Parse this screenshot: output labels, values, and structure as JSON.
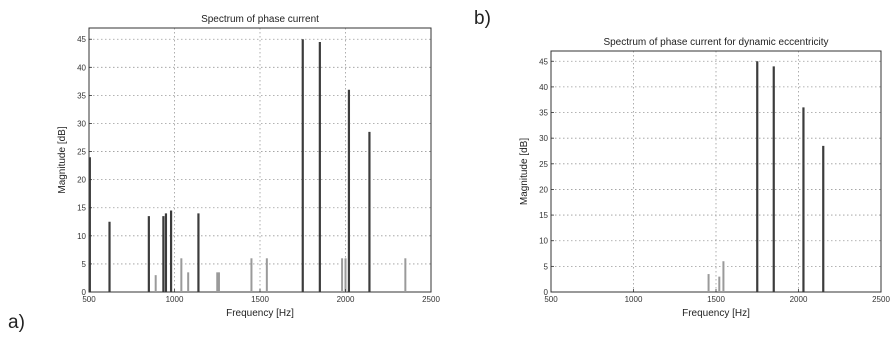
{
  "panel_labels": {
    "a": "a)",
    "b": "b)"
  },
  "colors": {
    "stem": "#3c3c3c",
    "stem_light": "#9a9a9a",
    "grid": "#9a9a9a",
    "frame": "#333333"
  },
  "chart_data": [
    {
      "type": "bar",
      "panel": "a)",
      "title": "Spectrum of phase current",
      "xlabel": "Frequency [Hz]",
      "ylabel": "Magnitude [dB]",
      "xlim": [
        500,
        2500
      ],
      "ylim": [
        0,
        47
      ],
      "xticks": [
        500,
        1000,
        1500,
        2000,
        2500
      ],
      "yticks": [
        0,
        5,
        10,
        15,
        20,
        25,
        30,
        35,
        40,
        45
      ],
      "ytick_labels": [
        "0",
        "5",
        "10",
        "15",
        "20",
        "25",
        "30",
        "35",
        "40",
        "45"
      ],
      "grid": true,
      "x": [
        505,
        620,
        850,
        890,
        935,
        950,
        980,
        1040,
        1080,
        1140,
        1250,
        1260,
        1450,
        1540,
        1750,
        1850,
        1980,
        2000,
        2020,
        2140,
        2350
      ],
      "values": [
        24,
        12.5,
        13.5,
        3,
        13.5,
        14,
        14.5,
        6,
        3.5,
        14,
        3.5,
        3.5,
        6,
        6,
        45,
        44.5,
        6,
        6,
        36,
        28.5,
        6
      ]
    },
    {
      "type": "bar",
      "panel": "b)",
      "title": "Spectrum of phase current for dynamic eccentricity",
      "xlabel": "Frequency [Hz]",
      "ylabel": "Magnitude [dB]",
      "xlim": [
        500,
        2500
      ],
      "ylim": [
        0,
        47
      ],
      "xticks": [
        500,
        1000,
        1500,
        2000,
        2500
      ],
      "yticks": [
        0,
        5,
        10,
        15,
        20,
        25,
        30,
        35,
        40,
        45
      ],
      "ytick_labels": [
        "0",
        "5",
        "10",
        "15",
        "20",
        "25",
        "30",
        "35",
        "40",
        "45"
      ],
      "grid": true,
      "x": [
        1455,
        1520,
        1545,
        1750,
        1850,
        2030,
        2150
      ],
      "values": [
        3.5,
        3,
        6,
        45,
        44,
        36,
        28.5
      ]
    }
  ]
}
